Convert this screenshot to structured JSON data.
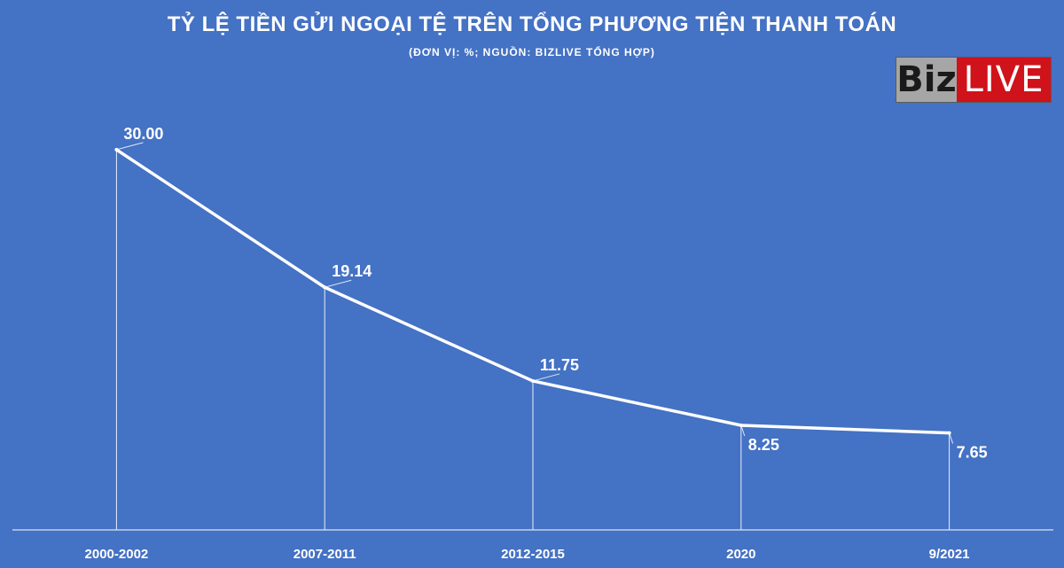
{
  "header": {
    "title": "TỶ LỆ TIỀN GỬI NGOẠI TỆ TRÊN TỔNG PHƯƠNG TIỆN THANH TOÁN",
    "subtitle": "(ĐƠN VỊ: %; NGUỒN: BIZLIVE TỔNG HỢP)"
  },
  "logo": {
    "text_left": "Biz",
    "text_right": "LIVE"
  },
  "colors": {
    "background": "#4472C4",
    "line": "#ffffff",
    "logo_red": "#d0121b",
    "logo_gray": "#a6a6a6"
  },
  "chart_data": {
    "type": "line",
    "title": "TỶ LỆ TIỀN GỬI NGOẠI TỆ TRÊN TỔNG PHƯƠNG TIỆN THANH TOÁN",
    "subtitle": "(ĐƠN VỊ: %; NGUỒN: BIZLIVE TỔNG HỢP)",
    "categories": [
      "2000-2002",
      "2007-2011",
      "2012-2015",
      "2020",
      "9/2021"
    ],
    "values": [
      30.0,
      19.14,
      11.75,
      8.25,
      7.65
    ],
    "data_labels": [
      "30.00",
      "19.14",
      "11.75",
      "8.25",
      "7.65"
    ],
    "ylim": [
      0,
      33
    ],
    "grid": false,
    "legend": "none",
    "xlabel": "",
    "ylabel": ""
  }
}
